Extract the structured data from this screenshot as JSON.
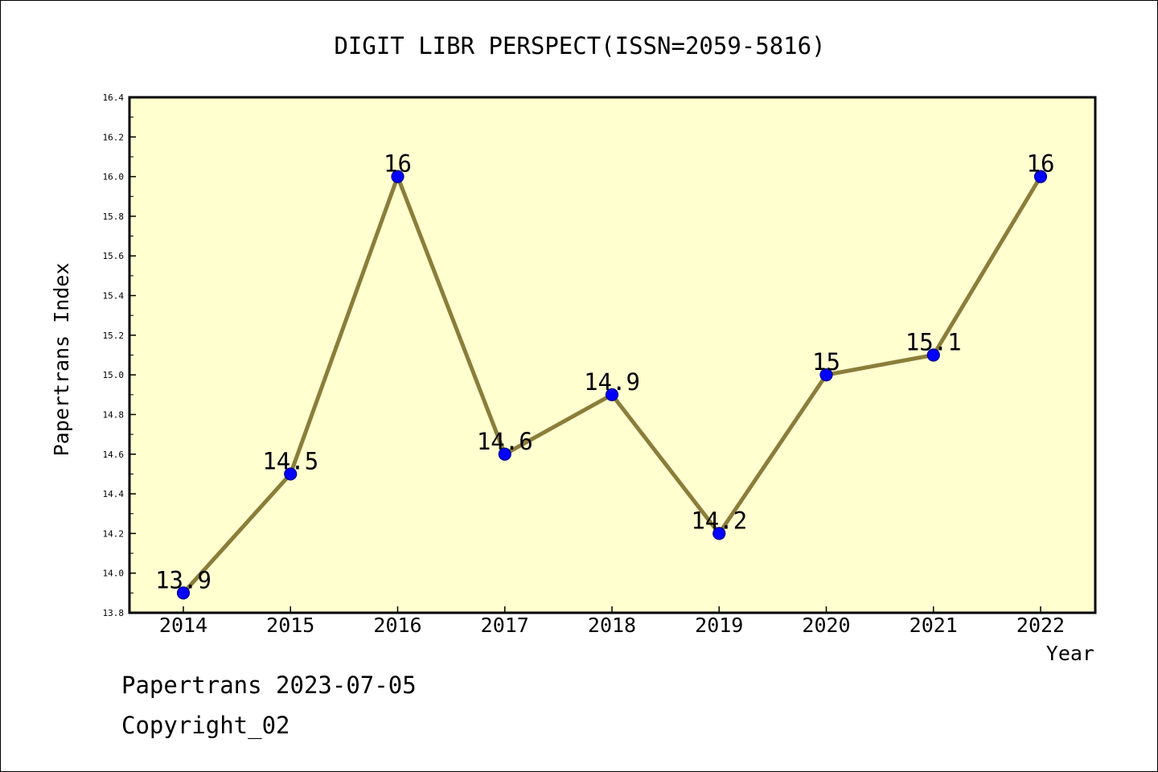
{
  "chart_data": {
    "type": "line",
    "title": "DIGIT LIBR PERSPECT(ISSN=2059-5816)",
    "xlabel": "Year",
    "ylabel": "Papertrans Index",
    "categories": [
      "2014",
      "2015",
      "2016",
      "2017",
      "2018",
      "2019",
      "2020",
      "2021",
      "2022"
    ],
    "values": [
      13.9,
      14.5,
      16,
      14.6,
      14.9,
      14.2,
      15,
      15.1,
      16
    ],
    "data_labels": [
      "13.9",
      "14.5",
      "16",
      "14.6",
      "14.9",
      "14.2",
      "15",
      "15.1",
      "16"
    ],
    "ylim": [
      13.8,
      16.4
    ],
    "yticks": [
      "13.8",
      "14.0",
      "14.2",
      "14.4",
      "14.6",
      "14.8",
      "15.0",
      "15.2",
      "15.4",
      "15.6",
      "15.8",
      "16.0",
      "16.2",
      "16.4"
    ],
    "grid": false,
    "legend": "none",
    "colors": {
      "plot_background": "#ffffd0",
      "line": "#8b7d3a",
      "marker": "#0000ff",
      "marker_edge": "#00008b",
      "axes": "#000000"
    }
  },
  "footer": {
    "line1": "Papertrans 2023-07-05",
    "line2": "Copyright_02"
  }
}
